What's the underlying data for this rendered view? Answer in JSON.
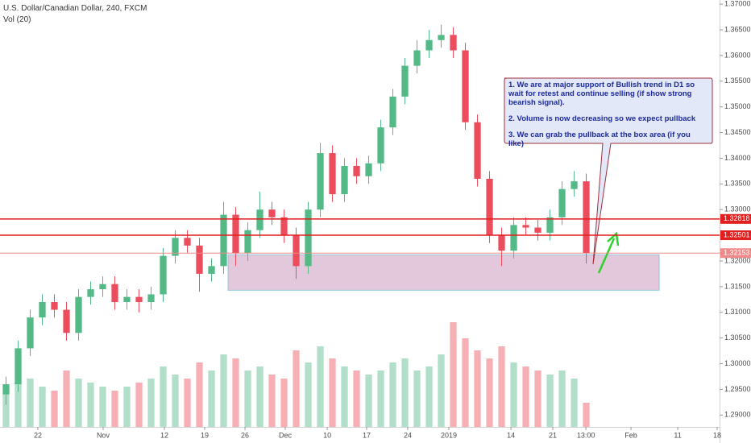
{
  "chart_data": {
    "type": "candlestick",
    "title": "U.S. Dollar/Canadian Dollar, 240, FXCM",
    "subtitle": "Vol (20)",
    "x": [
      0,
      1,
      2,
      3,
      4,
      5,
      6,
      7,
      8,
      9,
      10,
      11,
      12,
      13,
      14,
      15,
      16,
      17,
      18,
      19,
      20,
      21,
      22,
      23,
      24,
      25,
      26,
      27,
      28,
      29,
      30,
      31,
      32,
      33,
      34,
      35,
      36,
      37,
      38,
      39,
      40,
      41,
      42,
      43,
      44,
      45,
      46,
      47,
      48
    ],
    "open": [
      1.294,
      1.296,
      1.303,
      1.309,
      1.312,
      1.3105,
      1.306,
      1.313,
      1.3145,
      1.3155,
      1.312,
      1.313,
      1.312,
      1.3135,
      1.321,
      1.3245,
      1.323,
      1.3175,
      1.319,
      1.329,
      1.3215,
      1.326,
      1.33,
      1.3285,
      1.325,
      1.319,
      1.33,
      1.341,
      1.333,
      1.3385,
      1.3365,
      1.339,
      1.346,
      1.352,
      1.358,
      1.361,
      1.363,
      1.364,
      1.361,
      1.347,
      1.336,
      1.325,
      1.322,
      1.327,
      1.3265,
      1.3255,
      1.3285,
      1.334,
      1.3355
    ],
    "high": [
      1.2975,
      1.3045,
      1.3105,
      1.3135,
      1.3135,
      1.312,
      1.3145,
      1.316,
      1.317,
      1.317,
      1.3145,
      1.3145,
      1.315,
      1.3225,
      1.326,
      1.326,
      1.3245,
      1.3205,
      1.3315,
      1.3305,
      1.3275,
      1.3335,
      1.3315,
      1.33,
      1.3265,
      1.3315,
      1.343,
      1.3425,
      1.34,
      1.34,
      1.3405,
      1.3475,
      1.3535,
      1.3595,
      1.363,
      1.365,
      1.366,
      1.3655,
      1.3625,
      1.3485,
      1.3375,
      1.3265,
      1.3285,
      1.3285,
      1.328,
      1.33,
      1.3355,
      1.3375,
      1.337
    ],
    "low": [
      1.292,
      1.2945,
      1.3015,
      1.3075,
      1.309,
      1.3045,
      1.3045,
      1.3115,
      1.313,
      1.3105,
      1.3105,
      1.31,
      1.3105,
      1.312,
      1.3195,
      1.3215,
      1.314,
      1.316,
      1.3175,
      1.319,
      1.32,
      1.3245,
      1.327,
      1.3235,
      1.3165,
      1.3175,
      1.3285,
      1.3315,
      1.3315,
      1.335,
      1.335,
      1.3375,
      1.3445,
      1.3505,
      1.3565,
      1.3595,
      1.3615,
      1.3595,
      1.3455,
      1.3345,
      1.3235,
      1.319,
      1.3205,
      1.325,
      1.324,
      1.324,
      1.327,
      1.3325,
      1.3195
    ],
    "close": [
      1.296,
      1.303,
      1.309,
      1.312,
      1.3105,
      1.306,
      1.313,
      1.3145,
      1.3155,
      1.312,
      1.313,
      1.312,
      1.3135,
      1.321,
      1.3245,
      1.323,
      1.3175,
      1.319,
      1.329,
      1.3215,
      1.326,
      1.33,
      1.3285,
      1.325,
      1.319,
      1.33,
      1.341,
      1.333,
      1.3385,
      1.3365,
      1.339,
      1.346,
      1.352,
      1.358,
      1.361,
      1.363,
      1.364,
      1.361,
      1.347,
      1.336,
      1.325,
      1.322,
      1.327,
      1.3265,
      1.3255,
      1.3285,
      1.334,
      1.3355,
      1.3215
    ],
    "volume": [
      40,
      55,
      60,
      50,
      45,
      70,
      60,
      55,
      50,
      45,
      50,
      55,
      60,
      75,
      65,
      60,
      80,
      70,
      90,
      85,
      70,
      75,
      65,
      60,
      95,
      80,
      100,
      85,
      75,
      70,
      65,
      70,
      80,
      85,
      70,
      75,
      90,
      130,
      110,
      95,
      85,
      100,
      80,
      75,
      70,
      65,
      70,
      60,
      30
    ],
    "up_color": "#53b987",
    "down_color": "#eb4d5c",
    "xlim": [
      -0.5,
      59.03
    ],
    "xticks": [
      {
        "value": 2.63,
        "label": "22"
      },
      {
        "value": 8.03,
        "label": "Nov"
      },
      {
        "value": 13.1,
        "label": "12"
      },
      {
        "value": 16.43,
        "label": "19"
      },
      {
        "value": 19.77,
        "label": "26"
      },
      {
        "value": 23.1,
        "label": "Dec"
      },
      {
        "value": 26.57,
        "label": "10"
      },
      {
        "value": 29.83,
        "label": "17"
      },
      {
        "value": 33.23,
        "label": "24"
      },
      {
        "value": 36.63,
        "label": "2019"
      },
      {
        "value": 41.77,
        "label": "14"
      },
      {
        "value": 45.23,
        "label": "21"
      },
      {
        "value": 47.97,
        "label": "13:00"
      },
      {
        "value": 51.7,
        "label": "Feb"
      },
      {
        "value": 55.57,
        "label": "11"
      },
      {
        "value": 58.83,
        "label": "18"
      }
    ],
    "ylim": [
      1.2877,
      1.3708
    ],
    "yticks": [
      {
        "value": 1.37,
        "label": "1.37000"
      },
      {
        "value": 1.365,
        "label": "1.36500"
      },
      {
        "value": 1.36,
        "label": "1.36000"
      },
      {
        "value": 1.355,
        "label": "1.35500"
      },
      {
        "value": 1.35,
        "label": "1.35000"
      },
      {
        "value": 1.345,
        "label": "1.34500"
      },
      {
        "value": 1.34,
        "label": "1.34000"
      },
      {
        "value": 1.335,
        "label": "1.33500"
      },
      {
        "value": 1.33,
        "label": "1.33000"
      },
      {
        "value": 1.32,
        "label": "1.32000"
      },
      {
        "value": 1.315,
        "label": "1.31500"
      },
      {
        "value": 1.31,
        "label": "1.31000"
      },
      {
        "value": 1.305,
        "label": "1.30500"
      },
      {
        "value": 1.3,
        "label": "1.30000"
      },
      {
        "value": 1.295,
        "label": "1.29500"
      },
      {
        "value": 1.29,
        "label": "1.29000"
      }
    ],
    "levels": [
      {
        "value": 1.32818,
        "color": "#e31e1e"
      },
      {
        "value": 1.32501,
        "color": "#e31e1e"
      },
      {
        "value": 1.32153,
        "color": "#f08a8a"
      }
    ],
    "zone": {
      "x": [
        18.37,
        54.03
      ],
      "y": [
        1.3143,
        1.3212
      ],
      "color": "#d9b6cf"
    },
    "notes": [
      "1. We are at major support of Bullish trend in D1 so wait for retest and continue selling (if show strong bearish signal).",
      "2. Volume is now decreasing so we expect pullback",
      "3. We can grab the pullback at the box area (if you like)"
    ]
  }
}
